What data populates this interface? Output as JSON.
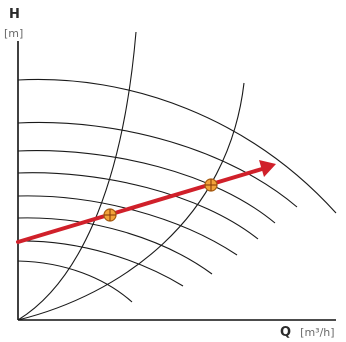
{
  "axes": {
    "y": {
      "symbol": "H",
      "unit": "[m]"
    },
    "x": {
      "symbol": "Q",
      "unit": "[m³/h]"
    }
  },
  "colors": {
    "axis": "#111111",
    "curve": "#1a1a1a",
    "operating_line": "#d0202a",
    "operating_point": "#f2a33a"
  },
  "diagram": {
    "pump_curve_count": 8,
    "system_curve_count": 2,
    "operating_point_count": 2
  }
}
